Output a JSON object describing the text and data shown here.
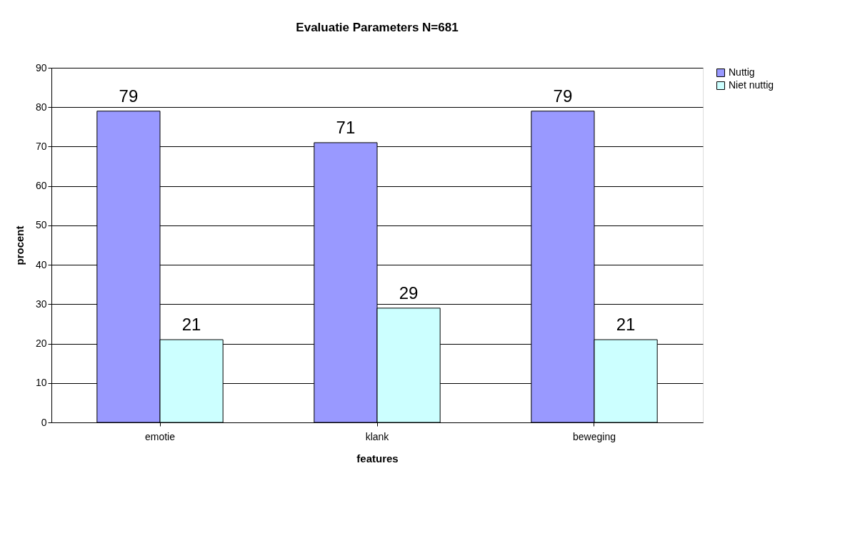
{
  "chart_data": {
    "type": "bar",
    "title": "Evaluatie Parameters N=681",
    "xlabel": "features",
    "ylabel": "procent",
    "categories": [
      "emotie",
      "klank",
      "beweging"
    ],
    "series": [
      {
        "name": "Nuttig",
        "color": "#9999ff",
        "values": [
          79,
          71,
          79
        ]
      },
      {
        "name": "Niet nuttig",
        "color": "#ccffff",
        "values": [
          21,
          29,
          21
        ]
      }
    ],
    "ylim": [
      0,
      90
    ],
    "yticks": [
      0,
      10,
      20,
      30,
      40,
      50,
      60,
      70,
      80,
      90
    ],
    "grid": "y",
    "legend": "right",
    "data_labels": true
  }
}
